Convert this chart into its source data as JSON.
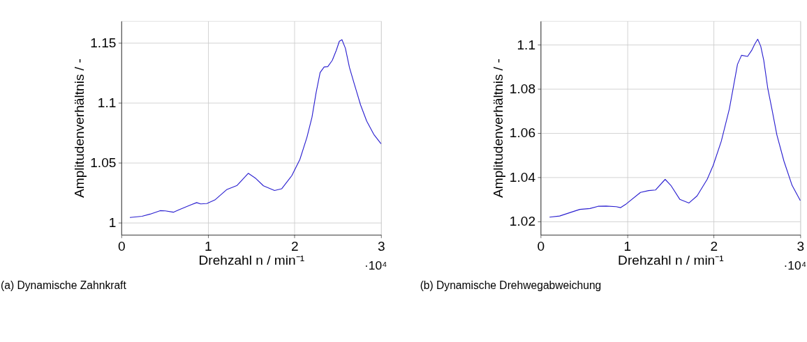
{
  "chart_data": [
    {
      "type": "line",
      "title": "(a) Dynamische Zahnkraft",
      "xlabel": "Drehzahl n / min⁻¹",
      "ylabel": "Amplitudenverhältnis / -",
      "annotations": [
        "·10⁴"
      ],
      "color": "#2a1fd0",
      "grid": true,
      "x": [
        0.0982,
        0.2385,
        0.332,
        0.4489,
        0.5074,
        0.6009,
        0.6594,
        0.7996,
        0.8698,
        0.9165,
        0.9867,
        1.0802,
        1.2205,
        1.3374,
        1.466,
        1.5478,
        1.6413,
        1.7699,
        1.8517,
        1.9686,
        2.0622,
        2.144,
        2.2025,
        2.2493,
        2.2961,
        2.3428,
        2.3849,
        2.4363,
        2.4831,
        2.5182,
        2.5486,
        2.5883,
        2.6351,
        2.6935,
        2.7637,
        2.8338,
        2.9156,
        3.0
      ],
      "values": [
        1.0044,
        1.0054,
        1.0072,
        1.0101,
        1.0099,
        1.0088,
        1.0106,
        1.0148,
        1.0168,
        1.0157,
        1.016,
        1.019,
        1.0278,
        1.0311,
        1.0412,
        1.0372,
        1.0308,
        1.0269,
        1.0283,
        1.0392,
        1.0527,
        1.0712,
        1.088,
        1.1082,
        1.1251,
        1.1298,
        1.1301,
        1.1352,
        1.1436,
        1.1512,
        1.1525,
        1.1453,
        1.1293,
        1.115,
        1.0981,
        1.0847,
        1.0737,
        1.0658
      ],
      "xlim": [
        0,
        3
      ],
      "xticks": [
        0,
        1,
        2,
        3
      ],
      "ylim": [
        0.99,
        1.168
      ],
      "yticks": [
        1,
        1.05,
        1.1,
        1.15
      ]
    },
    {
      "type": "line",
      "title": "(b) Dynamische Drehwegabweichung",
      "xlabel": "Drehzahl n / min⁻¹",
      "ylabel": "Amplitudenverhältnis / -",
      "annotations": [
        "·10⁴"
      ],
      "color": "#2a1fd0",
      "grid": true,
      "x": [
        0.1027,
        0.2195,
        0.3596,
        0.453,
        0.5697,
        0.6631,
        0.7565,
        0.8732,
        0.9246,
        0.99,
        1.1534,
        1.2468,
        1.3285,
        1.4383,
        1.5036,
        1.6087,
        1.7138,
        1.8072,
        1.9239,
        1.994,
        2.0873,
        2.1807,
        2.2274,
        2.2741,
        2.3208,
        2.3909,
        2.4376,
        2.4726,
        2.5077,
        2.5427,
        2.5777,
        2.6244,
        2.6711,
        2.7295,
        2.8112,
        2.9046,
        3.0
      ],
      "values": [
        1.0219,
        1.0224,
        1.0242,
        1.0254,
        1.0258,
        1.0268,
        1.0269,
        1.0266,
        1.0262,
        1.0279,
        1.0331,
        1.0339,
        1.0342,
        1.039,
        1.0363,
        1.0299,
        1.0283,
        1.0315,
        1.039,
        1.0454,
        1.0563,
        1.071,
        1.081,
        1.0911,
        1.0952,
        1.0947,
        1.0974,
        1.1002,
        1.1025,
        1.0993,
        1.0929,
        1.0801,
        1.071,
        1.0591,
        1.0472,
        1.0363,
        1.0294
      ],
      "xlim": [
        0,
        3
      ],
      "xticks": [
        0,
        1,
        2,
        3
      ],
      "ylim": [
        1.0139,
        1.1107
      ],
      "yticks": [
        1.02,
        1.04,
        1.06,
        1.08,
        1.1
      ]
    }
  ]
}
